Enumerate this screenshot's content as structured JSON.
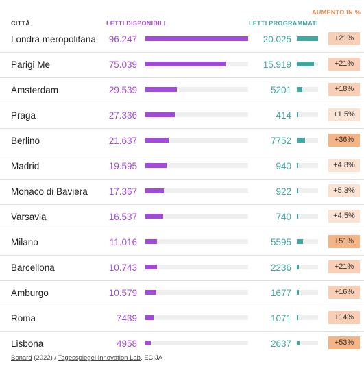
{
  "colors": {
    "available": "#a24bd8",
    "programmed": "#3fa8a0",
    "increase_header": "#f0884a",
    "badge_light": "#fbe3d4",
    "badge_mid": "#f8cfb4",
    "badge_strong": "#f4b485"
  },
  "headers": {
    "city": "CITTÀ",
    "available": "LETTI DISPONIBILI",
    "programmed": "LETTI PROGRAMMATI",
    "increase": "AUMENTO IN %"
  },
  "chart_data": {
    "type": "table",
    "available_max": 96247,
    "programmed_max": 20025,
    "rows": [
      {
        "city": "Londra meropolitana",
        "available": 96247,
        "available_label": "96.247",
        "programmed": 20025,
        "programmed_label": "20.025",
        "increase": 21,
        "increase_label": "+21%"
      },
      {
        "city": "Parigi Me",
        "available": 75039,
        "available_label": "75.039",
        "programmed": 15919,
        "programmed_label": "15.919",
        "increase": 21,
        "increase_label": "+21%"
      },
      {
        "city": "Amsterdam",
        "available": 29539,
        "available_label": "29.539",
        "programmed": 5201,
        "programmed_label": "5201",
        "increase": 18,
        "increase_label": "+18%"
      },
      {
        "city": "Praga",
        "available": 27336,
        "available_label": "27.336",
        "programmed": 414,
        "programmed_label": "414",
        "increase": 1.5,
        "increase_label": "+1,5%"
      },
      {
        "city": "Berlino",
        "available": 21637,
        "available_label": "21.637",
        "programmed": 7752,
        "programmed_label": "7752",
        "increase": 36,
        "increase_label": "+36%"
      },
      {
        "city": "Madrid",
        "available": 19595,
        "available_label": "19.595",
        "programmed": 940,
        "programmed_label": "940",
        "increase": 4.8,
        "increase_label": "+4,8%"
      },
      {
        "city": "Monaco di Baviera",
        "available": 17367,
        "available_label": "17.367",
        "programmed": 922,
        "programmed_label": "922",
        "increase": 5.3,
        "increase_label": "+5,3%"
      },
      {
        "city": "Varsavia",
        "available": 16537,
        "available_label": "16.537",
        "programmed": 740,
        "programmed_label": "740",
        "increase": 4.5,
        "increase_label": "+4,5%"
      },
      {
        "city": "Milano",
        "available": 11016,
        "available_label": "11.016",
        "programmed": 5595,
        "programmed_label": "5595",
        "increase": 51,
        "increase_label": "+51%"
      },
      {
        "city": "Barcellona",
        "available": 10743,
        "available_label": "10.743",
        "programmed": 2236,
        "programmed_label": "2236",
        "increase": 21,
        "increase_label": "+21%"
      },
      {
        "city": "Amburgo",
        "available": 10579,
        "available_label": "10.579",
        "programmed": 1677,
        "programmed_label": "1677",
        "increase": 16,
        "increase_label": "+16%"
      },
      {
        "city": "Roma",
        "available": 7439,
        "available_label": "7439",
        "programmed": 1071,
        "programmed_label": "1071",
        "increase": 14,
        "increase_label": "+14%"
      },
      {
        "city": "Lisbona",
        "available": 4958,
        "available_label": "4958",
        "programmed": 2637,
        "programmed_label": "2637",
        "increase": 53,
        "increase_label": "+53%"
      }
    ]
  },
  "footer": {
    "source1": "Bonard",
    "year": " (2022) / ",
    "source2": "Tagesspiegel Innovation Lab",
    "rest": ", ECIJA"
  }
}
